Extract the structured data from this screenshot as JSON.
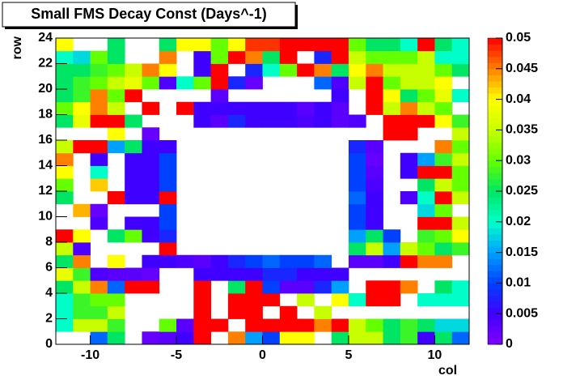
{
  "chart_data": {
    "type": "heatmap",
    "title": "Small FMS Decay Const (Days^-1)",
    "x_label": "col",
    "y_label": "row",
    "xlim": [
      -12,
      12
    ],
    "ylim": [
      0,
      24
    ],
    "xticks": [
      -10,
      -5,
      0,
      5,
      10
    ],
    "yticks": [
      0,
      2,
      4,
      6,
      8,
      10,
      12,
      14,
      16,
      18,
      20,
      22,
      24
    ],
    "zlim": [
      0,
      0.05
    ],
    "zticks": [
      0,
      0.005,
      0.01,
      0.015,
      0.02,
      0.025,
      0.03,
      0.035,
      0.04,
      0.045,
      0.05
    ],
    "palette": [
      "#8000ff",
      "#4000ff",
      "#0040ff",
      "#00a0ff",
      "#00ffc8",
      "#00e664",
      "#64ff00",
      "#c8ff00",
      "#ffff00",
      "#ff8000",
      "#ff0000"
    ],
    "z": [
      [
        null,
        null,
        0.012,
        0.025,
        null,
        0.002,
        0.003,
        0.005,
        0.05,
        null,
        0.045,
        0.015,
        0.01,
        0.04,
        0.04,
        null,
        0.025,
        0.035,
        0.035,
        0.025,
        0.028,
        0.005,
        0.025,
        0.012
      ],
      [
        0.02,
        0.035,
        0.035,
        0.028,
        null,
        null,
        0.03,
        0.003,
        0.05,
        0.05,
        null,
        0.05,
        0.05,
        0.05,
        0.05,
        0.045,
        0.05,
        0.035,
        0.03,
        0.025,
        0.028,
        0.025,
        0.018,
        0.018
      ],
      [
        0.02,
        0.028,
        0.028,
        0.035,
        null,
        null,
        null,
        null,
        0.05,
        null,
        0.05,
        0.05,
        null,
        0.05,
        null,
        0.035,
        null,
        null,
        null,
        null,
        null,
        null,
        null,
        null
      ],
      [
        0.02,
        0.028,
        0.03,
        0.03,
        null,
        null,
        null,
        null,
        0.05,
        null,
        0.05,
        0.05,
        0.05,
        null,
        0.035,
        null,
        0.04,
        0.02,
        0.05,
        0.05,
        null,
        0.02,
        0.02,
        0.02
      ],
      [
        0.025,
        0.035,
        0.045,
        0.012,
        0.05,
        0.05,
        null,
        null,
        0.05,
        null,
        0.025,
        0.05,
        0.01,
        0.003,
        0.003,
        0.008,
        0.015,
        null,
        0.05,
        0.05,
        0.045,
        null,
        0.025,
        0.02
      ],
      [
        0.038,
        0.028,
        0.004,
        0.003,
        0.003,
        0.002,
        null,
        null,
        0.005,
        0.005,
        0.005,
        0.005,
        0.008,
        0.008,
        0.005,
        0.005,
        0.005,
        null,
        null,
        null,
        null,
        null,
        null,
        null
      ],
      [
        0.025,
        0.045,
        null,
        0.04,
        null,
        0.005,
        0.005,
        0.004,
        0.003,
        0.005,
        0.008,
        0.01,
        0.012,
        0.01,
        0.01,
        0.012,
        null,
        0.003,
        0.003,
        0.005,
        0.05,
        0.045,
        0.045,
        null
      ],
      [
        0.035,
        0.004,
        null,
        null,
        null,
        null,
        0.05,
        null,
        null,
        null,
        null,
        null,
        null,
        null,
        null,
        null,
        null,
        0.025,
        0.035,
        0.015,
        0.035,
        0.03,
        0.025,
        0.028
      ],
      [
        0.05,
        0.04,
        null,
        0.025,
        0.03,
        0.005,
        0.008,
        null,
        null,
        null,
        null,
        null,
        null,
        null,
        null,
        null,
        null,
        0.015,
        0.025,
        0.01,
        null,
        0.028,
        0.03,
        0.04
      ],
      [
        null,
        null,
        0.004,
        null,
        0.005,
        0.005,
        0.01,
        null,
        null,
        null,
        null,
        null,
        null,
        null,
        null,
        null,
        null,
        0.01,
        0.005,
        null,
        null,
        0.05,
        0.05,
        0.035
      ],
      [
        null,
        0.043,
        0.002,
        null,
        null,
        null,
        0.01,
        null,
        null,
        null,
        null,
        null,
        null,
        null,
        null,
        null,
        null,
        0.01,
        0.005,
        null,
        null,
        0.018,
        0.03,
        null
      ],
      [
        0.025,
        null,
        null,
        0.05,
        0.005,
        0.005,
        0.05,
        null,
        null,
        null,
        null,
        null,
        null,
        null,
        null,
        null,
        null,
        0.012,
        0.005,
        null,
        0.004,
        0.02,
        0.05,
        0.035
      ],
      [
        0.03,
        null,
        0.042,
        null,
        0.005,
        0.005,
        0.01,
        null,
        null,
        null,
        null,
        null,
        null,
        null,
        null,
        null,
        null,
        0.01,
        0.004,
        null,
        null,
        0.025,
        0.035,
        0.03
      ],
      [
        0.04,
        null,
        0.02,
        null,
        0.005,
        0.005,
        0.01,
        null,
        null,
        null,
        null,
        null,
        null,
        null,
        null,
        null,
        null,
        0.01,
        0.003,
        null,
        0.005,
        0.05,
        0.05,
        0.03
      ],
      [
        0.045,
        null,
        0.005,
        null,
        0.005,
        0.005,
        0.01,
        null,
        null,
        null,
        null,
        null,
        null,
        null,
        null,
        null,
        null,
        0.01,
        0.002,
        null,
        0.005,
        0.015,
        0.028,
        0.035
      ],
      [
        0.035,
        0.05,
        0.05,
        0.015,
        0.025,
        0.005,
        0.005,
        null,
        null,
        null,
        null,
        null,
        null,
        null,
        null,
        null,
        null,
        0.008,
        0.003,
        null,
        null,
        null,
        0.045,
        0.03
      ],
      [
        null,
        null,
        null,
        0.04,
        null,
        0.002,
        null,
        null,
        null,
        null,
        null,
        null,
        null,
        null,
        null,
        null,
        null,
        null,
        null,
        0.05,
        0.05,
        null,
        null,
        0.035
      ],
      [
        0.025,
        0.038,
        0.05,
        0.05,
        0.025,
        null,
        null,
        null,
        0.005,
        0.003,
        0.008,
        0.005,
        0.005,
        0.005,
        0.004,
        0.005,
        0.003,
        0.004,
        null,
        0.05,
        0.05,
        0.05,
        0.04,
        0.028
      ],
      [
        0.03,
        0.04,
        0.045,
        0.035,
        null,
        0.05,
        null,
        0.05,
        0.005,
        0.005,
        0.005,
        0.005,
        0.005,
        0.005,
        0.003,
        0.005,
        0.003,
        null,
        0.05,
        0.035,
        0.045,
        0.035,
        0.03,
        null
      ],
      [
        0.025,
        0.028,
        0.045,
        0.03,
        0.05,
        null,
        null,
        null,
        null,
        0.003,
        null,
        null,
        null,
        null,
        null,
        null,
        0.005,
        null,
        0.05,
        0.04,
        0.025,
        0.03,
        0.038,
        0.02
      ],
      [
        0.025,
        0.028,
        0.03,
        0.035,
        0.038,
        0.03,
        0.004,
        0.02,
        0.03,
        0.05,
        0.008,
        0.002,
        null,
        null,
        null,
        0.012,
        0.004,
        0.035,
        0.05,
        0.03,
        0.035,
        0.035,
        0.04,
        null
      ],
      [
        0.025,
        0.025,
        0.028,
        0.03,
        0.035,
        0.045,
        0.04,
        null,
        0.005,
        0.05,
        null,
        0.008,
        0.02,
        0.03,
        0.05,
        0.045,
        0.025,
        0.04,
        0.045,
        0.035,
        0.035,
        0.035,
        0.03,
        0.025
      ],
      [
        0.02,
        0.018,
        0.03,
        0.025,
        null,
        null,
        0.045,
        null,
        0.005,
        0.03,
        0.05,
        0.045,
        0.025,
        0.05,
        null,
        0.008,
        0.05,
        0.035,
        0.03,
        0.03,
        0.03,
        0.035,
        0.02,
        0.02
      ],
      [
        0.04,
        null,
        null,
        0.025,
        null,
        null,
        0.025,
        0.04,
        0.04,
        0.03,
        0.04,
        0.048,
        0.048,
        0.05,
        0.05,
        0.05,
        0.05,
        0.03,
        0.025,
        0.025,
        0.02,
        0.05,
        0.025,
        0.02
      ]
    ]
  }
}
